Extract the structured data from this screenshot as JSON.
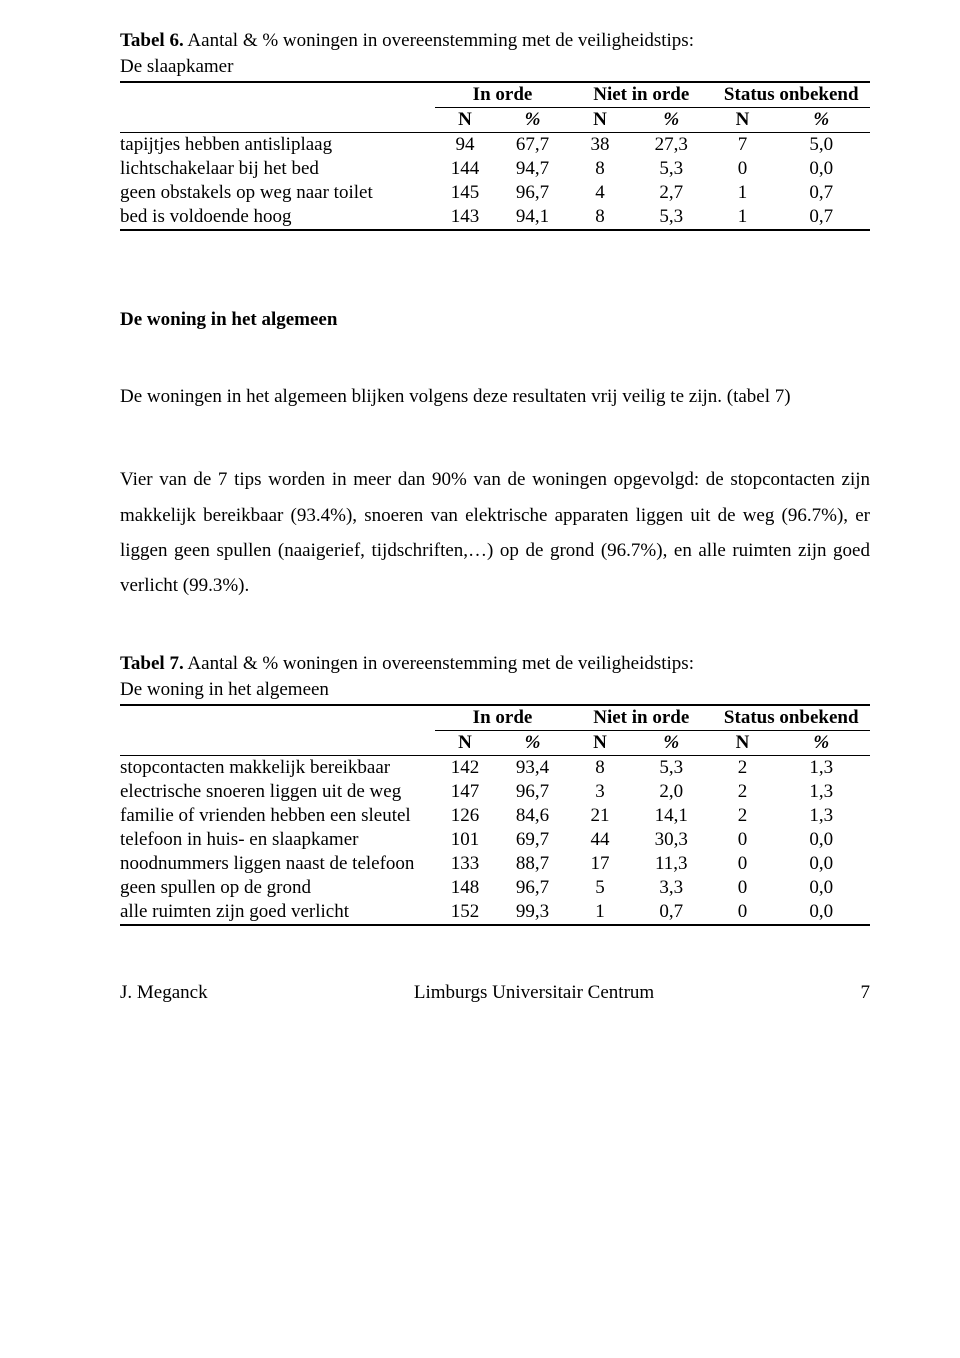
{
  "colors": {
    "background": "#ffffff",
    "text": "#000000",
    "rule": "#000000"
  },
  "table6": {
    "caption_lead": "Tabel 6.",
    "caption_rest": " Aantal & % woningen in overeenstemming met de veiligheidstips:",
    "caption_sub": "De slaapkamer",
    "group_headers": [
      "In orde",
      "Niet in orde",
      "Status onbekend"
    ],
    "sub_headers": [
      "N",
      "%",
      "N",
      "%",
      "N",
      "%"
    ],
    "row_labels": [
      "tapijtjes hebben antisliplaag",
      "lichtschakelaar bij het bed",
      "geen obstakels op weg naar toilet",
      "bed is voldoende hoog"
    ],
    "rows": [
      [
        "94",
        "67,7",
        "38",
        "27,3",
        "7",
        "5,0"
      ],
      [
        "144",
        "94,7",
        "8",
        "5,3",
        "0",
        "0,0"
      ],
      [
        "145",
        "96,7",
        "4",
        "2,7",
        "1",
        "0,7"
      ],
      [
        "143",
        "94,1",
        "8",
        "5,3",
        "1",
        "0,7"
      ]
    ]
  },
  "section_heading": "De woning in het algemeen",
  "paragraph1": "De woningen in het algemeen blijken volgens deze resultaten vrij veilig te zijn. (tabel 7)",
  "paragraph2": "Vier van de 7 tips worden in meer dan 90% van de woningen opgevolgd: de stopcontacten zijn makkelijk bereikbaar (93.4%), snoeren van elektrische apparaten liggen uit de weg (96.7%), er liggen geen spullen (naaigerief, tijdschriften,…) op de grond (96.7%), en alle ruimten zijn goed verlicht (99.3%).",
  "table7": {
    "caption_lead": "Tabel 7.",
    "caption_rest": " Aantal & % woningen in overeenstemming met de veiligheidstips:",
    "caption_sub": "De woning in het algemeen",
    "group_headers": [
      "In orde",
      "Niet in orde",
      "Status onbekend"
    ],
    "sub_headers": [
      "N",
      "%",
      "N",
      "%",
      "N",
      "%"
    ],
    "row_labels": [
      "stopcontacten makkelijk bereikbaar",
      "electrische snoeren liggen uit de weg",
      "familie of vrienden hebben een sleutel",
      "telefoon in huis- en slaapkamer",
      "noodnummers liggen naast de telefoon",
      "geen spullen op de grond",
      "alle ruimten zijn goed verlicht"
    ],
    "rows": [
      [
        "142",
        "93,4",
        "8",
        "5,3",
        "2",
        "1,3"
      ],
      [
        "147",
        "96,7",
        "3",
        "2,0",
        "2",
        "1,3"
      ],
      [
        "126",
        "84,6",
        "21",
        "14,1",
        "2",
        "1,3"
      ],
      [
        "101",
        "69,7",
        "44",
        "30,3",
        "0",
        "0,0"
      ],
      [
        "133",
        "88,7",
        "17",
        "11,3",
        "0",
        "0,0"
      ],
      [
        "148",
        "96,7",
        "5",
        "3,3",
        "0",
        "0,0"
      ],
      [
        "152",
        "99,3",
        "1",
        "0,7",
        "0",
        "0,0"
      ]
    ]
  },
  "footer": {
    "author": "J. Meganck",
    "affiliation": "Limburgs Universitair Centrum",
    "page": "7"
  }
}
